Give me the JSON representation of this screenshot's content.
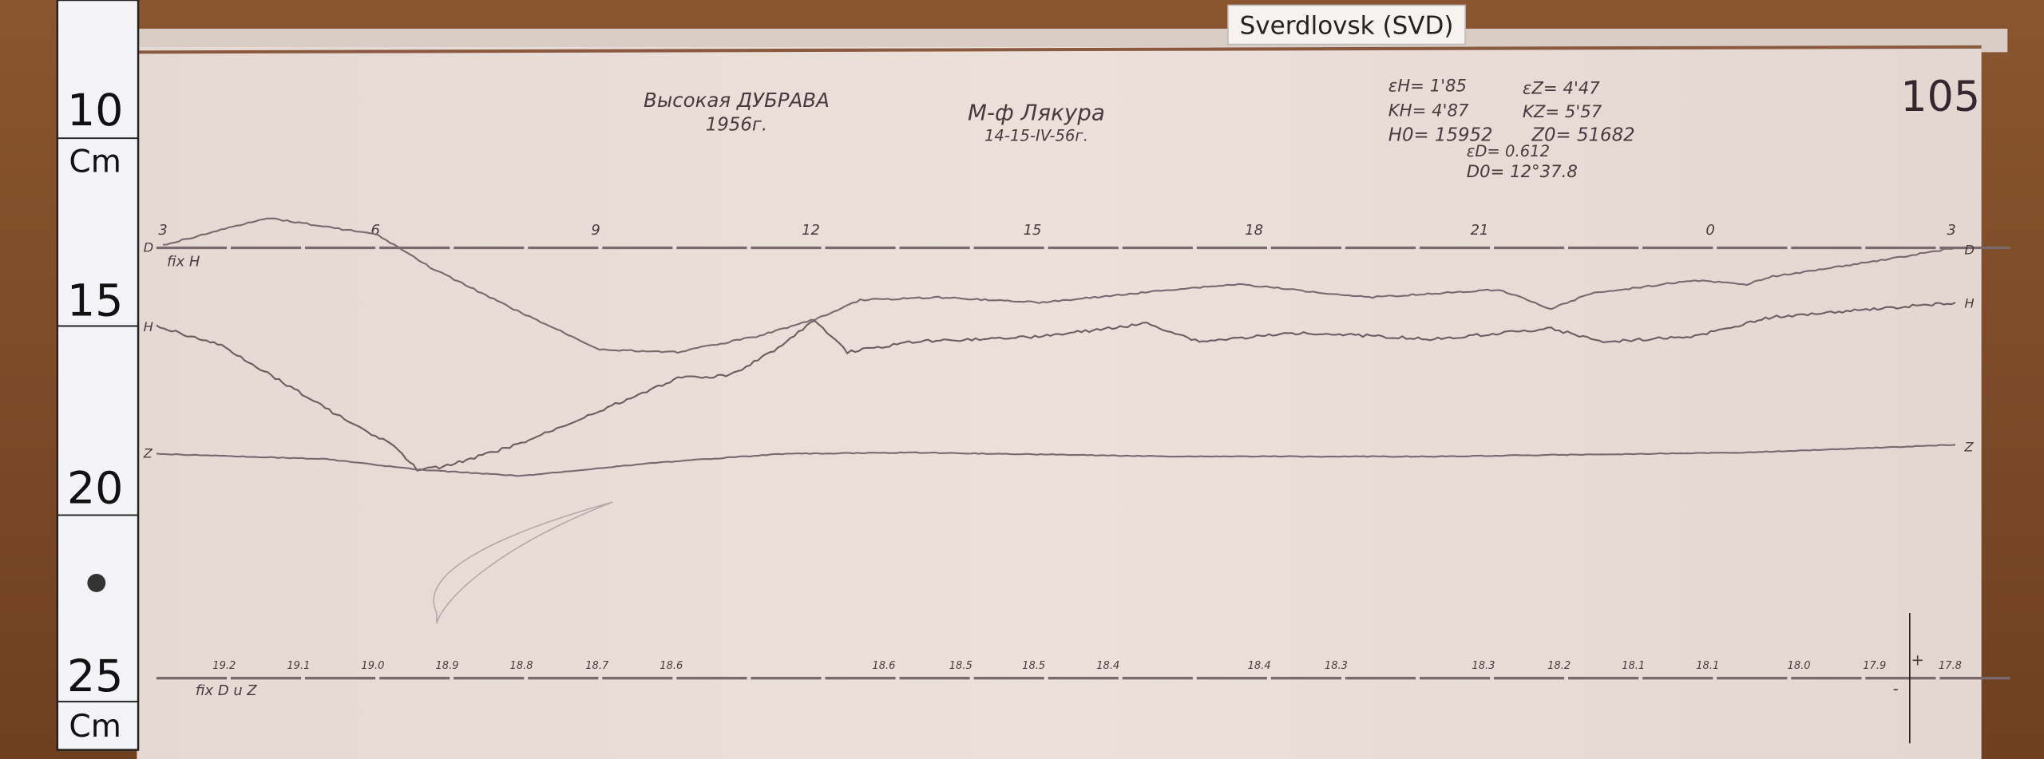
{
  "sticker": "Sverdlovsk (SVD)",
  "station_title": "Высокая ДУБРАВА",
  "station_year": "1956г.",
  "observer": "М-ф Лякура",
  "date": "14-15-IV-56г.",
  "sheet_number": "105",
  "constants": {
    "eps_h": "εH= 1'85",
    "eps_z": "εZ= 4'47",
    "k_h": "KH= 4'87",
    "k_z": "KZ= 5'57",
    "h0": "H0= 15952",
    "z0": "Z0= 51682",
    "eps_d": "εD= 0.612",
    "d0": "D0= 12°37.8"
  },
  "hour_marks": [
    "3",
    "6",
    "9",
    "12",
    "15",
    "18",
    "21",
    "0",
    "3"
  ],
  "trace_labels": {
    "d_left": "D",
    "h_left": "H",
    "z_left": "Z",
    "d_right": "D",
    "h_right": "H",
    "z_right": "Z"
  },
  "fix_h": "fix H",
  "fix_dz": "fix D u Z",
  "temperature_marks": [
    "19.2",
    "19.1",
    "19.0",
    "18.9",
    "18.8",
    "18.7",
    "18.6",
    "18.6",
    "18.5",
    "18.5",
    "18.4",
    "18.4",
    "18.3",
    "18.3",
    "18.2",
    "18.1",
    "18.1",
    "18.0",
    "17.9",
    "17.8"
  ],
  "plus_sign": "+",
  "minus_sign": "-",
  "ruler": {
    "n10": "10",
    "n15": "15",
    "n20": "20",
    "n25": "25",
    "unit_top": "Cm",
    "unit_bottom": "Cm"
  },
  "colors": {
    "paper": "#e8dcd6",
    "wood": "#7a4a26",
    "ink": "#4a3a40",
    "trace": "#7a6a70"
  }
}
